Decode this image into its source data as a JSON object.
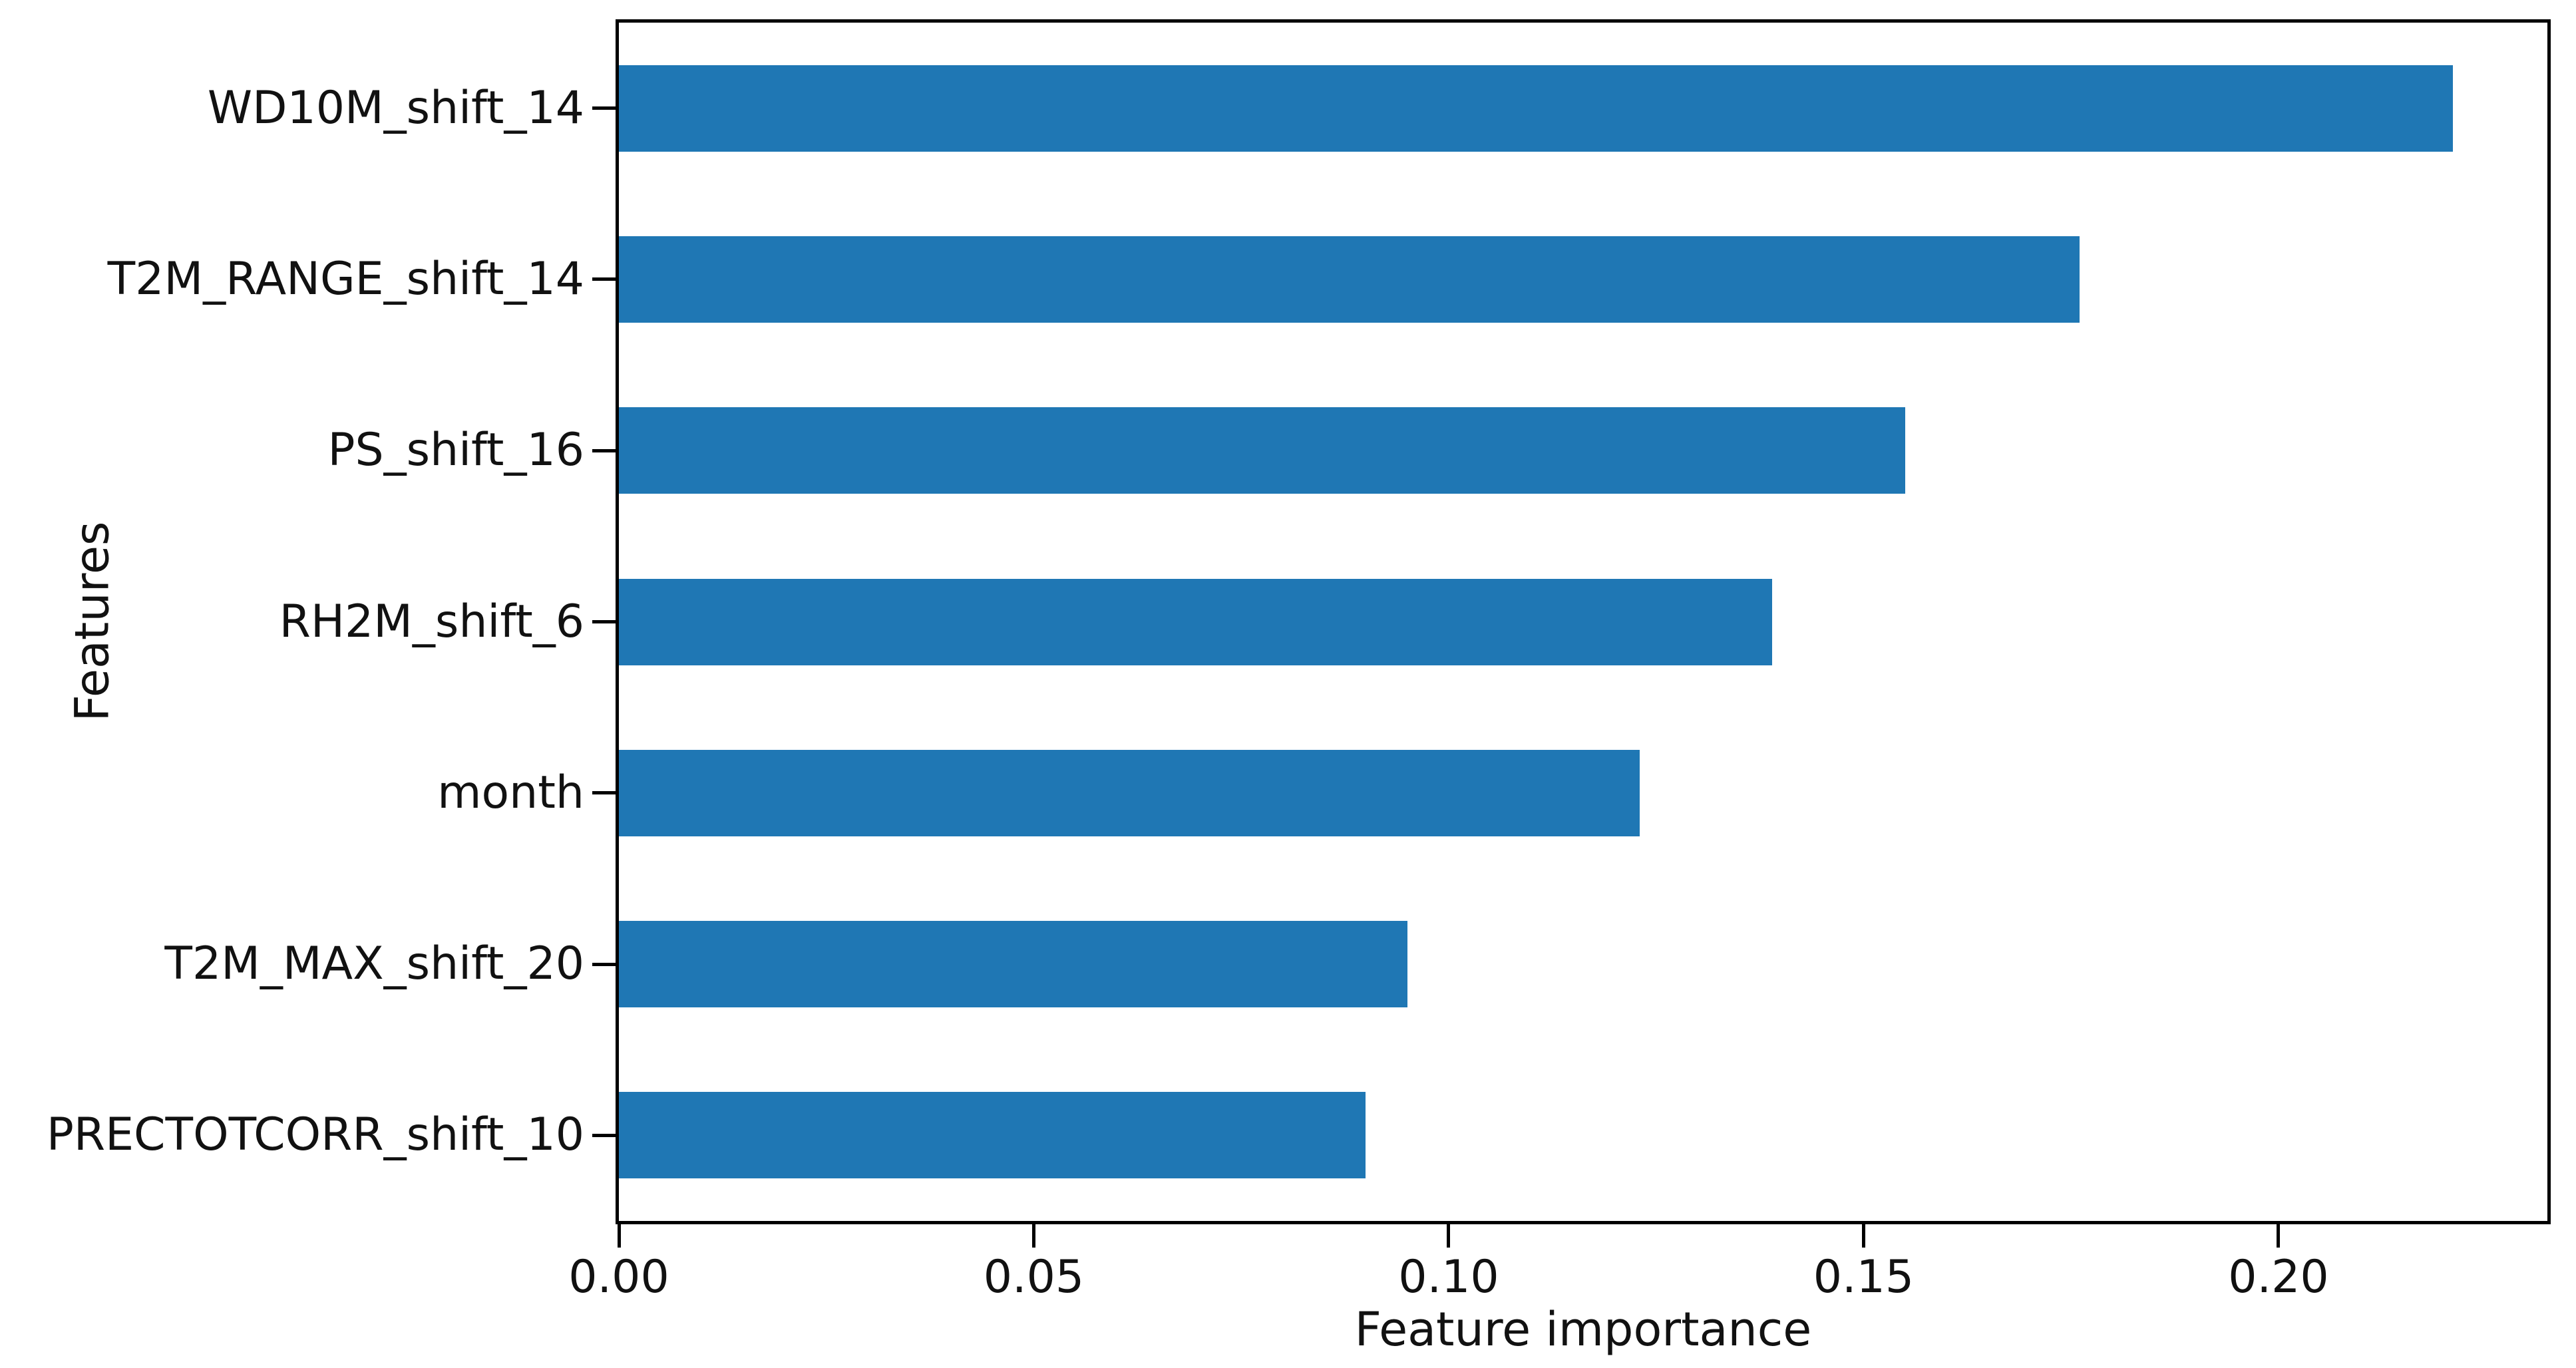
{
  "figure": {
    "background_color": "#ffffff",
    "text_color": "#111111",
    "spine_color": "#000000"
  },
  "chart_data": {
    "type": "bar",
    "orientation": "horizontal",
    "title": "",
    "xlabel": "Feature importance",
    "ylabel": "Features",
    "categories": [
      "WD10M_shift_14",
      "T2M_RANGE_shift_14",
      "PS_shift_16",
      "RH2M_shift_6",
      "month",
      "T2M_MAX_shift_20",
      "PRECTOTCORR_shift_10"
    ],
    "values": [
      0.221,
      0.176,
      0.155,
      0.139,
      0.123,
      0.095,
      0.09
    ],
    "bar_color": "#1f77b4",
    "xlim": [
      0,
      0.2324
    ],
    "xticks": [
      0.0,
      0.05,
      0.1,
      0.15,
      0.2
    ],
    "xtick_labels": [
      "0.00",
      "0.05",
      "0.10",
      "0.15",
      "0.20"
    ],
    "grid": false,
    "legend_position": "none"
  }
}
